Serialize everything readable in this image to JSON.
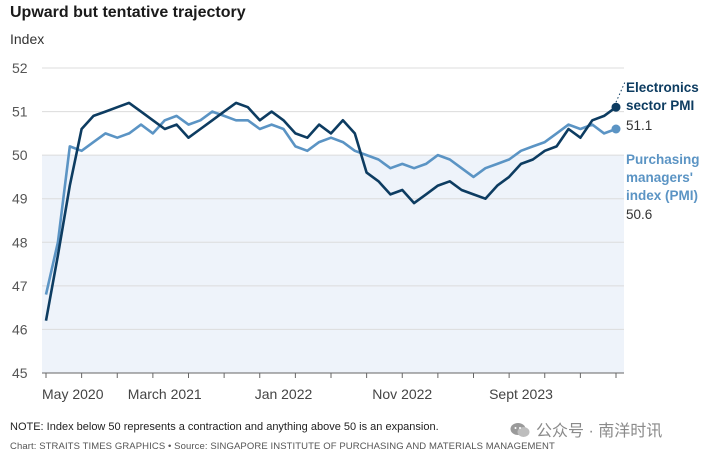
{
  "title": "Upward but tentative trajectory",
  "subtitle": "Index",
  "note": "NOTE: Index below 50 represents a contraction and anything above 50 is an expansion.",
  "credit": "Chart: STRAITS TIMES GRAPHICS • Source: SINGAPORE INSTITUTE OF PURCHASING AND MATERIALS MANAGEMENT",
  "watermark": "公众号 · 南洋时讯",
  "colors": {
    "electronics": "#0d3c61",
    "pmi": "#5b94c4",
    "shade": "#eef3fa",
    "grid": "#dcdcdc",
    "axis": "#666666"
  },
  "chart_data": {
    "type": "line",
    "x_tick_labels": [
      "May 2020",
      "March 2021",
      "Jan 2022",
      "Nov 2022",
      "Sept 2023"
    ],
    "y_ticks": [
      45,
      46,
      47,
      48,
      49,
      50,
      51,
      52
    ],
    "ylim": [
      45,
      52
    ],
    "shaded_below": 50,
    "series": [
      {
        "name": "Electronics sector PMI",
        "label_lines": [
          "Electronics",
          "sector PMI"
        ],
        "last_label": "51.1",
        "color": "#0d3c61",
        "values": [
          46.2,
          47.7,
          49.3,
          50.6,
          50.9,
          51.0,
          51.1,
          51.2,
          51.0,
          50.8,
          50.6,
          50.7,
          50.4,
          50.6,
          50.8,
          51.0,
          51.2,
          51.1,
          50.8,
          51.0,
          50.8,
          50.5,
          50.4,
          50.7,
          50.5,
          50.8,
          50.5,
          49.6,
          49.4,
          49.1,
          49.2,
          48.9,
          49.1,
          49.3,
          49.4,
          49.2,
          49.1,
          49.0,
          49.3,
          49.5,
          49.8,
          49.9,
          50.1,
          50.2,
          50.6,
          50.4,
          50.8,
          50.9,
          51.1
        ]
      },
      {
        "name": "Purchasing managers' index (PMI)",
        "label_lines": [
          "Purchasing",
          "managers'",
          "index (PMI)"
        ],
        "last_label": "50.6",
        "color": "#5b94c4",
        "values": [
          46.8,
          48.0,
          50.2,
          50.1,
          50.3,
          50.5,
          50.4,
          50.5,
          50.7,
          50.5,
          50.8,
          50.9,
          50.7,
          50.8,
          51.0,
          50.9,
          50.8,
          50.8,
          50.6,
          50.7,
          50.6,
          50.2,
          50.1,
          50.3,
          50.4,
          50.3,
          50.1,
          50.0,
          49.9,
          49.7,
          49.8,
          49.7,
          49.8,
          50.0,
          49.9,
          49.7,
          49.5,
          49.7,
          49.8,
          49.9,
          50.1,
          50.2,
          50.3,
          50.5,
          50.7,
          50.6,
          50.7,
          50.5,
          50.6
        ]
      }
    ]
  }
}
